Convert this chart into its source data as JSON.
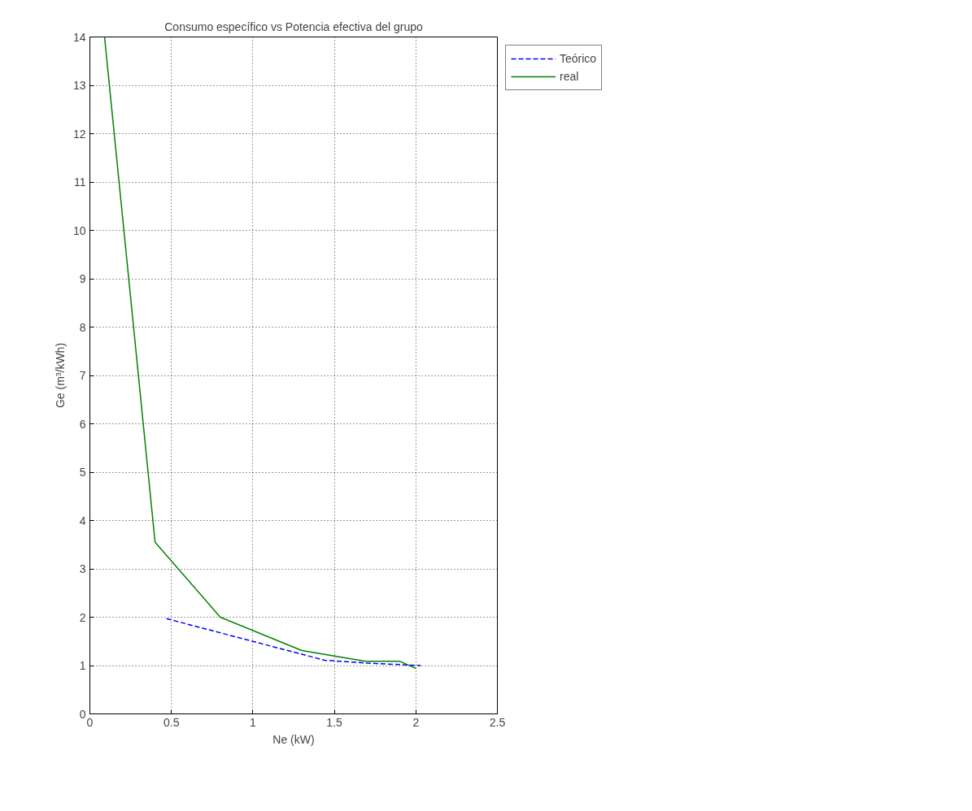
{
  "chart_data": {
    "type": "line",
    "title": "Consumo específico vs Potencia efectiva del grupo",
    "xlabel": "Ne (kW)",
    "ylabel": "Ge (m³/kWh)",
    "xlim": [
      0,
      2.5
    ],
    "ylim": [
      0,
      14
    ],
    "xticks": [
      0,
      0.5,
      1,
      1.5,
      2,
      2.5
    ],
    "yticks": [
      0,
      1,
      2,
      3,
      4,
      5,
      6,
      7,
      8,
      9,
      10,
      11,
      12,
      13,
      14
    ],
    "grid": true,
    "legend": "top right",
    "series": [
      {
        "name": "Teórico",
        "color": "#0000ff",
        "line_style": "dashed",
        "x": [
          0.47,
          1.0,
          1.44,
          1.7,
          2.03
        ],
        "values": [
          1.97,
          1.5,
          1.11,
          1.05,
          1.0
        ]
      },
      {
        "name": "real",
        "color": "#008000",
        "line_style": "solid",
        "x": [
          0.09,
          0.4,
          0.8,
          1.3,
          1.69,
          1.9,
          2.0
        ],
        "values": [
          14,
          3.55,
          2.0,
          1.31,
          1.09,
          1.09,
          0.94
        ]
      }
    ]
  }
}
